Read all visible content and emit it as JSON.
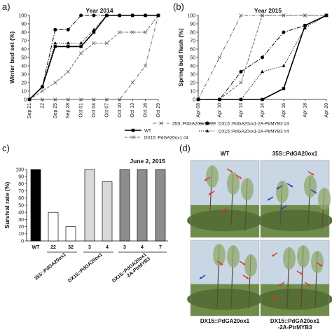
{
  "panel_labels": [
    "a)",
    "(b)",
    "c)",
    "(d)"
  ],
  "line_legend": [
    {
      "label": "WT",
      "style": "solid-square"
    },
    {
      "label": "35S::PdGA20ox1 #22",
      "style": "dashdot-x"
    },
    {
      "label": "DX15::PdGA20ox1 #4",
      "style": "dash-x"
    },
    {
      "label": "DX15::PdGA20ox1-2A-PtrMYB3 #3",
      "style": "dashdot-circle"
    },
    {
      "label": "DX15::PdGA20ox1-2A-PtrMYB3 #4",
      "style": "dotted-triangle"
    }
  ],
  "chart_data": [
    {
      "type": "line",
      "title": "Year 2014",
      "ylabel": "Winter bud set (%)",
      "xlabel": "",
      "ylim": [
        0,
        100
      ],
      "yticks": [
        0,
        10,
        20,
        30,
        40,
        50,
        60,
        70,
        80,
        90,
        100
      ],
      "categories": [
        "Sep 21",
        "Sep 22",
        "Sep 25",
        "Sep 28",
        "Oct 01",
        "Oct 04",
        "Oct 07",
        "Oct 10",
        "Oct 13",
        "Oct 16",
        "Oct 29"
      ],
      "tick_labels": [
        "Sep 21",
        "22",
        "Sep 25",
        "Sep 28",
        "Oct 01",
        "Oct 04",
        "Oct 07",
        "Oct 10",
        "Oct 13",
        "Oct 16",
        "Oct 29"
      ],
      "series": [
        {
          "name": "WT",
          "color": "#000000",
          "values": [
            0,
            15,
            63,
            63,
            63,
            80,
            100,
            100,
            100,
            100,
            100
          ]
        },
        {
          "name": "35S::PdGA20ox1 #22",
          "color": "#666666",
          "values": [
            0,
            0,
            0,
            0,
            0,
            0,
            0,
            0,
            20,
            40,
            100
          ]
        },
        {
          "name": "DX15::PdGA20ox1 #4",
          "color": "#666666",
          "values": [
            0,
            10,
            20,
            33,
            55,
            67,
            67,
            80,
            80,
            80,
            100
          ]
        },
        {
          "name": "DX15::PdGA20ox1-2A-PtrMYB3 #3",
          "color": "#000000",
          "values": [
            0,
            15,
            83,
            83,
            100,
            100,
            100,
            100,
            100,
            100,
            100
          ]
        },
        {
          "name": "DX15::PdGA20ox1-2A-PtrMYB3 #4",
          "color": "#000000",
          "values": [
            0,
            15,
            67,
            67,
            67,
            83,
            100,
            100,
            100,
            100,
            100
          ]
        }
      ]
    },
    {
      "type": "line",
      "title": "Year 2015",
      "ylabel": "Spring bud flush (%)",
      "xlabel": "",
      "ylim": [
        0,
        100
      ],
      "yticks": [
        0,
        10,
        20,
        30,
        40,
        50,
        60,
        70,
        80,
        90,
        100
      ],
      "categories": [
        "Apr 08",
        "Apr 10",
        "Apr 13",
        "Apr 14",
        "Apr 16",
        "Apr 18",
        "Apr 20"
      ],
      "series": [
        {
          "name": "WT",
          "color": "#000000",
          "values": [
            0,
            0,
            0,
            0,
            13,
            88,
            100
          ]
        },
        {
          "name": "35S::PdGA20ox1 #22",
          "color": "#666666",
          "values": [
            0,
            50,
            100,
            100,
            100,
            100,
            100
          ]
        },
        {
          "name": "DX15::PdGA20ox1 #4",
          "color": "#666666",
          "values": [
            0,
            0,
            20,
            100,
            100,
            100,
            100
          ]
        },
        {
          "name": "DX15::PdGA20ox1-2A-PtrMYB3 #3",
          "color": "#000000",
          "values": [
            0,
            0,
            33,
            50,
            80,
            88,
            100
          ]
        },
        {
          "name": "DX15::PdGA20ox1-2A-PtrMYB3 #4",
          "color": "#000000",
          "values": [
            0,
            0,
            0,
            33,
            40,
            85,
            100
          ]
        }
      ]
    },
    {
      "type": "bar",
      "title": "June 2, 2015",
      "ylabel": "Survival rate (%)",
      "xlabel": "",
      "ylim": [
        0,
        100
      ],
      "yticks": [
        0,
        10,
        20,
        30,
        40,
        50,
        60,
        70,
        80,
        90,
        100
      ],
      "categories": [
        "WT",
        "22",
        "32",
        "3",
        "4",
        "3",
        "4",
        "7"
      ],
      "values": [
        100,
        40,
        20,
        100,
        83,
        100,
        100,
        100
      ],
      "colors": [
        "#000000",
        "#ffffff",
        "#ffffff",
        "#d9d9d9",
        "#d9d9d9",
        "#8c8c8c",
        "#8c8c8c",
        "#8c8c8c"
      ],
      "groups": [
        {
          "label": "35S::PdGA20ox1",
          "from": 1,
          "to": 2
        },
        {
          "label": "DX15::PdGA20ox1",
          "from": 3,
          "to": 4
        },
        {
          "label": "DX15::PdGA20ox1\n-2A-PtrMYB3",
          "from": 5,
          "to": 7
        }
      ]
    }
  ],
  "photos": {
    "labels": [
      "WT",
      "35S::PdGA20ox1",
      "DX15::PdGA20ox1",
      "DX15::PdGA20ox1\n-2A-PtrMYB3"
    ],
    "arrow_colors": {
      "red": "#e0322a",
      "blue": "#1d3fd8"
    }
  }
}
